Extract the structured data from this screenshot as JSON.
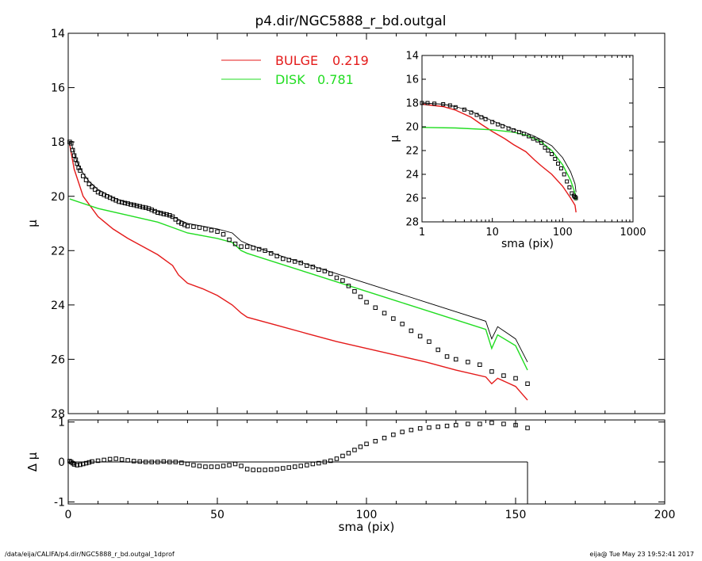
{
  "title": "p4.dir/NGC5888_r_bd.outgal",
  "footer": {
    "left": "/data/eija/CALIFA/p4.dir/NGC5888_r_bd.outgal_1dprof",
    "right": "eija@  Tue May 23 19:52:41 2017"
  },
  "colors": {
    "bulge": "#e41a1a",
    "disk": "#22dd22",
    "data": "#000000",
    "frame": "#000000"
  },
  "chart_data": [
    {
      "id": "main",
      "type": "line",
      "xlabel": "sma (pix)",
      "ylabel": "μ",
      "xlim": [
        0,
        200
      ],
      "ylim": [
        28,
        14
      ],
      "xticks": [
        0,
        50,
        100,
        150,
        200
      ],
      "yticks": [
        14,
        16,
        18,
        20,
        22,
        24,
        26,
        28
      ],
      "legend_position": "top",
      "legend": [
        {
          "name": "BULGE",
          "value": "0.219",
          "color": "#e41a1a"
        },
        {
          "name": "DISK",
          "value": "0.781",
          "color": "#22dd22"
        }
      ],
      "series": [
        {
          "name": "BULGE",
          "style": "line",
          "color": "#e41a1a",
          "x": [
            0.5,
            2,
            5,
            10,
            15,
            20,
            25,
            30,
            35,
            37,
            40,
            45,
            50,
            55,
            58,
            60,
            70,
            80,
            90,
            100,
            110,
            120,
            130,
            140,
            142,
            144,
            150,
            154
          ],
          "y": [
            18.1,
            19.0,
            20.0,
            20.75,
            21.2,
            21.55,
            21.85,
            22.15,
            22.55,
            22.9,
            23.2,
            23.4,
            23.65,
            24.0,
            24.3,
            24.45,
            24.75,
            25.05,
            25.35,
            25.6,
            25.85,
            26.1,
            26.4,
            26.65,
            26.9,
            26.7,
            27.0,
            27.5
          ]
        },
        {
          "name": "DISK",
          "style": "line",
          "color": "#22dd22",
          "x": [
            0.5,
            10,
            20,
            30,
            35,
            40,
            45,
            50,
            55,
            58,
            60,
            70,
            80,
            90,
            100,
            110,
            120,
            130,
            140,
            142,
            144,
            150,
            154
          ],
          "y": [
            20.1,
            20.45,
            20.7,
            20.95,
            21.15,
            21.35,
            21.45,
            21.55,
            21.7,
            22.0,
            22.1,
            22.45,
            22.8,
            23.15,
            23.5,
            23.85,
            24.2,
            24.55,
            24.9,
            25.6,
            25.1,
            25.5,
            26.4
          ]
        },
        {
          "name": "Total",
          "style": "line",
          "color": "#000000",
          "x": [
            0.5,
            1,
            2,
            3,
            5,
            7,
            10,
            15,
            20,
            25,
            30,
            35,
            40,
            45,
            50,
            55,
            58,
            60,
            70,
            80,
            90,
            100,
            110,
            120,
            130,
            140,
            142,
            144,
            150,
            154
          ],
          "y": [
            18.0,
            18.05,
            18.4,
            18.75,
            19.15,
            19.45,
            19.75,
            20.05,
            20.25,
            20.4,
            20.55,
            20.75,
            21.0,
            21.1,
            21.2,
            21.35,
            21.65,
            21.75,
            22.15,
            22.5,
            22.85,
            23.2,
            23.55,
            23.9,
            24.25,
            24.6,
            25.25,
            24.8,
            25.25,
            26.1
          ]
        },
        {
          "name": "Data",
          "style": "markers",
          "color": "#000000",
          "x": [
            0.5,
            1,
            1.5,
            2,
            2.5,
            3,
            3.5,
            4,
            5,
            6,
            7,
            8,
            9,
            10,
            11,
            12,
            13,
            14,
            15,
            16,
            17,
            18,
            19,
            20,
            21,
            22,
            23,
            24,
            25,
            26,
            27,
            28,
            29,
            30,
            31,
            32,
            33,
            34,
            35,
            36,
            37,
            38,
            39,
            40,
            42,
            44,
            46,
            48,
            50,
            52,
            54,
            56,
            58,
            60,
            62,
            64,
            66,
            68,
            70,
            72,
            74,
            76,
            78,
            80,
            82,
            84,
            86,
            88,
            90,
            92,
            94,
            96,
            98,
            100,
            103,
            106,
            109,
            112,
            115,
            118,
            121,
            124,
            127,
            130,
            134,
            138,
            142,
            146,
            150,
            154
          ],
          "y": [
            18.0,
            18.05,
            18.3,
            18.5,
            18.65,
            18.8,
            18.95,
            19.05,
            19.25,
            19.4,
            19.55,
            19.65,
            19.75,
            19.85,
            19.9,
            19.95,
            20.0,
            20.05,
            20.1,
            20.15,
            20.2,
            20.22,
            20.25,
            20.27,
            20.3,
            20.32,
            20.35,
            20.37,
            20.4,
            20.42,
            20.45,
            20.5,
            20.55,
            20.6,
            20.62,
            20.65,
            20.67,
            20.7,
            20.75,
            20.85,
            20.95,
            21.0,
            21.05,
            21.1,
            21.12,
            21.15,
            21.2,
            21.25,
            21.3,
            21.4,
            21.6,
            21.75,
            21.85,
            21.85,
            21.9,
            21.95,
            22.0,
            22.1,
            22.2,
            22.3,
            22.35,
            22.4,
            22.45,
            22.55,
            22.6,
            22.7,
            22.75,
            22.85,
            23.0,
            23.1,
            23.3,
            23.5,
            23.7,
            23.9,
            24.1,
            24.3,
            24.5,
            24.7,
            24.95,
            25.15,
            25.35,
            25.65,
            25.9,
            26.0,
            26.1,
            26.2,
            26.45,
            26.6,
            26.7,
            26.9
          ]
        }
      ]
    },
    {
      "id": "inset",
      "type": "line",
      "xlabel": "sma (pix)",
      "ylabel": "μ",
      "xscale": "log",
      "xlim": [
        1,
        1000
      ],
      "ylim": [
        28,
        14
      ],
      "xticks": [
        1,
        10,
        100,
        1000
      ],
      "yticks": [
        14,
        16,
        18,
        20,
        22,
        24,
        26,
        28
      ],
      "series": [
        {
          "name": "BULGE",
          "style": "line",
          "color": "#e41a1a",
          "x": [
            1,
            2,
            3,
            5,
            7,
            10,
            15,
            20,
            30,
            40,
            50,
            70,
            100,
            130,
            150,
            155
          ],
          "y": [
            18.1,
            18.3,
            18.6,
            19.2,
            19.8,
            20.4,
            21.0,
            21.5,
            22.1,
            22.8,
            23.3,
            24.0,
            25.0,
            26.0,
            26.6,
            27.2
          ]
        },
        {
          "name": "DISK",
          "style": "line",
          "color": "#22dd22",
          "x": [
            1,
            3,
            10,
            20,
            30,
            40,
            50,
            70,
            100,
            130,
            150,
            155
          ],
          "y": [
            20.05,
            20.1,
            20.25,
            20.45,
            20.7,
            21.0,
            21.3,
            22.0,
            23.2,
            24.5,
            25.6,
            26.2
          ]
        },
        {
          "name": "Total",
          "style": "line",
          "color": "#000000",
          "x": [
            1,
            2,
            3,
            5,
            10,
            15,
            20,
            30,
            40,
            50,
            70,
            100,
            130,
            150,
            155
          ],
          "y": [
            18.0,
            18.1,
            18.3,
            18.7,
            19.5,
            19.9,
            20.2,
            20.5,
            20.8,
            21.1,
            21.6,
            22.6,
            23.8,
            24.8,
            25.5
          ]
        },
        {
          "name": "Data",
          "style": "markers",
          "color": "#000000",
          "x": [
            1,
            1.2,
            1.5,
            2,
            2.5,
            3,
            4,
            5,
            6,
            7,
            8,
            10,
            12,
            14,
            17,
            20,
            24,
            28,
            33,
            38,
            44,
            50,
            56,
            62,
            70,
            78,
            86,
            95,
            105,
            115,
            125,
            135,
            145,
            150,
            154
          ],
          "y": [
            18.0,
            18.0,
            18.05,
            18.1,
            18.2,
            18.35,
            18.55,
            18.8,
            19.0,
            19.2,
            19.35,
            19.6,
            19.8,
            19.95,
            20.15,
            20.3,
            20.45,
            20.6,
            20.8,
            21.0,
            21.15,
            21.35,
            21.75,
            22.0,
            22.3,
            22.7,
            23.1,
            23.5,
            24.0,
            24.6,
            25.1,
            25.6,
            25.8,
            25.9,
            26.0
          ]
        }
      ]
    },
    {
      "id": "residual",
      "type": "scatter",
      "xlabel": "sma (pix)",
      "ylabel": "Δ μ",
      "xlim": [
        0,
        200
      ],
      "ylim": [
        -1.05,
        1.05
      ],
      "xticks": [
        0,
        50,
        100,
        150,
        200
      ],
      "yticks": [
        -1,
        0,
        1
      ],
      "series": [
        {
          "name": "Residual",
          "style": "markers",
          "color": "#000000",
          "x": [
            0.5,
            1,
            1.5,
            2,
            3,
            4,
            5,
            6,
            7,
            8,
            10,
            12,
            14,
            16,
            18,
            20,
            22,
            24,
            26,
            28,
            30,
            32,
            34,
            36,
            38,
            40,
            42,
            44,
            46,
            48,
            50,
            52,
            54,
            56,
            58,
            60,
            62,
            64,
            66,
            68,
            70,
            72,
            74,
            76,
            78,
            80,
            82,
            84,
            86,
            88,
            90,
            92,
            94,
            96,
            98,
            100,
            103,
            106,
            109,
            112,
            115,
            118,
            121,
            124,
            127,
            130,
            134,
            138,
            142,
            146,
            150,
            154
          ],
          "y": [
            0.02,
            0.0,
            -0.03,
            -0.06,
            -0.08,
            -0.07,
            -0.05,
            -0.03,
            -0.01,
            0.01,
            0.03,
            0.05,
            0.07,
            0.08,
            0.06,
            0.04,
            0.02,
            0.01,
            0.0,
            0.0,
            0.0,
            0.01,
            0.0,
            0.0,
            -0.02,
            -0.05,
            -0.08,
            -0.1,
            -0.12,
            -0.12,
            -0.12,
            -0.1,
            -0.08,
            -0.05,
            -0.1,
            -0.18,
            -0.2,
            -0.2,
            -0.2,
            -0.19,
            -0.18,
            -0.16,
            -0.14,
            -0.12,
            -0.1,
            -0.08,
            -0.05,
            -0.03,
            0.0,
            0.03,
            0.08,
            0.15,
            0.22,
            0.3,
            0.38,
            0.45,
            0.52,
            0.6,
            0.68,
            0.75,
            0.8,
            0.84,
            0.86,
            0.88,
            0.9,
            0.92,
            0.95,
            0.95,
            0.98,
            0.95,
            0.92,
            0.85
          ]
        }
      ]
    }
  ]
}
